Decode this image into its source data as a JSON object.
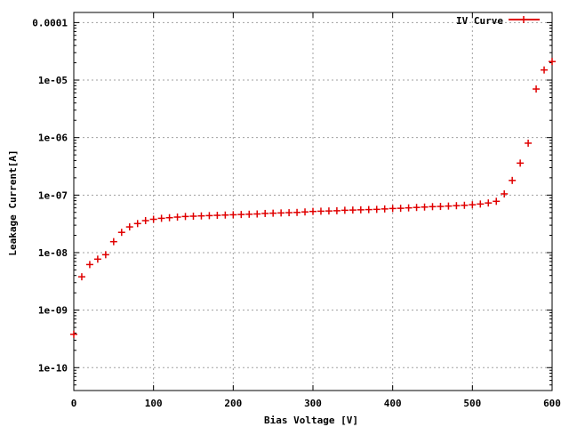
{
  "chart_data": {
    "type": "scatter",
    "xlabel": "Bias Voltage [V]",
    "ylabel": "Leakage Current[A]",
    "xlim": [
      0,
      600
    ],
    "ylim": [
      4e-11,
      0.00015
    ],
    "yscale": "log",
    "grid": true,
    "legend_position": "top-right",
    "x_ticks": [
      0,
      100,
      200,
      300,
      400,
      500,
      600
    ],
    "x_tick_labels": [
      "0",
      "100",
      "200",
      "300",
      "400",
      "500",
      "600"
    ],
    "y_ticks": [
      1e-10,
      1e-09,
      1e-08,
      1e-07,
      1e-06,
      1e-05,
      0.0001
    ],
    "y_tick_labels": [
      "1e-10",
      "1e-09",
      "1e-08",
      "1e-07",
      "1e-06",
      "1e-05",
      "0.0001"
    ],
    "series": [
      {
        "name": "IV Curve",
        "color": "#e00000",
        "marker": "plus",
        "x": [
          0,
          10,
          20,
          30,
          40,
          50,
          60,
          70,
          80,
          90,
          100,
          110,
          120,
          130,
          140,
          150,
          160,
          170,
          180,
          190,
          200,
          210,
          220,
          230,
          240,
          250,
          260,
          270,
          280,
          290,
          300,
          310,
          320,
          330,
          340,
          350,
          360,
          370,
          380,
          390,
          400,
          410,
          420,
          430,
          440,
          450,
          460,
          470,
          480,
          490,
          500,
          510,
          520,
          530,
          540,
          550,
          560,
          570,
          580,
          590,
          600
        ],
        "y": [
          3.8e-10,
          3.8e-09,
          6.2e-09,
          7.7e-09,
          9.2e-09,
          1.55e-08,
          2.25e-08,
          2.8e-08,
          3.2e-08,
          3.6e-08,
          3.8e-08,
          3.95e-08,
          4.05e-08,
          4.15e-08,
          4.25e-08,
          4.3e-08,
          4.35e-08,
          4.4e-08,
          4.45e-08,
          4.5e-08,
          4.55e-08,
          4.6e-08,
          4.65e-08,
          4.7e-08,
          4.8e-08,
          4.85e-08,
          4.9e-08,
          4.95e-08,
          5e-08,
          5.1e-08,
          5.2e-08,
          5.25e-08,
          5.3e-08,
          5.35e-08,
          5.45e-08,
          5.5e-08,
          5.55e-08,
          5.6e-08,
          5.65e-08,
          5.75e-08,
          5.85e-08,
          5.9e-08,
          6e-08,
          6.1e-08,
          6.2e-08,
          6.3e-08,
          6.35e-08,
          6.45e-08,
          6.55e-08,
          6.65e-08,
          6.8e-08,
          7e-08,
          7.3e-08,
          7.8e-08,
          1.05e-07,
          1.8e-07,
          3.6e-07,
          8e-07,
          7e-06,
          1.5e-05,
          2.1e-05
        ]
      }
    ]
  }
}
